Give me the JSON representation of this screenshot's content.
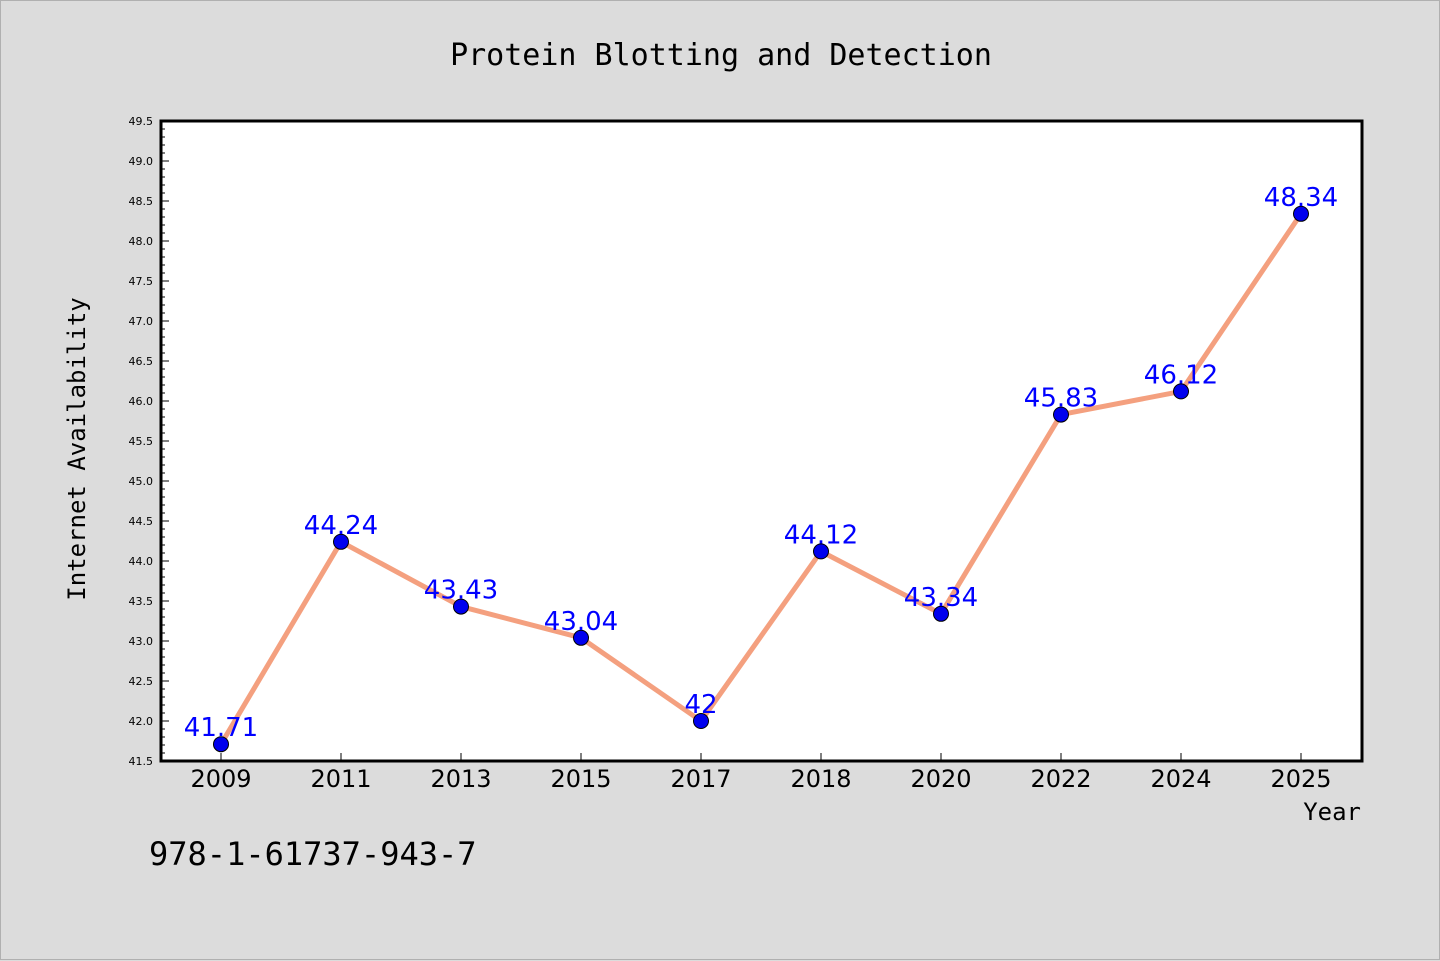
{
  "chart_data": {
    "type": "line",
    "title": "Protein Blotting and Detection",
    "xlabel": "Year",
    "ylabel": "Internet Availability",
    "categories": [
      "2009",
      "2011",
      "2013",
      "2015",
      "2017",
      "2018",
      "2020",
      "2022",
      "2024",
      "2025"
    ],
    "series": [
      {
        "values": [
          41.71,
          44.24,
          43.43,
          43.04,
          42,
          44.12,
          43.34,
          45.83,
          46.12,
          48.34
        ],
        "labels": [
          "41.71",
          "44.24",
          "43.43",
          "43.04",
          "42",
          "44.12",
          "43.34",
          "45.83",
          "46.12",
          "48.34"
        ],
        "line_color": "#f4a07f",
        "marker_color": "#0000ee"
      }
    ],
    "ylim": [
      41.5,
      49.5
    ],
    "yticks": [
      "41.5",
      "42.0",
      "42.5",
      "43.0",
      "43.5",
      "44.0",
      "44.5",
      "45.0",
      "45.5",
      "46.0",
      "46.5",
      "47.0",
      "47.5",
      "48.0",
      "48.5",
      "49.0",
      "49.5"
    ],
    "grid": false,
    "legend": "none"
  },
  "annotation": {
    "isbn": "978-1-61737-943-7"
  },
  "colors": {
    "background": "#dcdcdc",
    "plot_background": "#ffffff",
    "label_color": "#0000ff"
  }
}
